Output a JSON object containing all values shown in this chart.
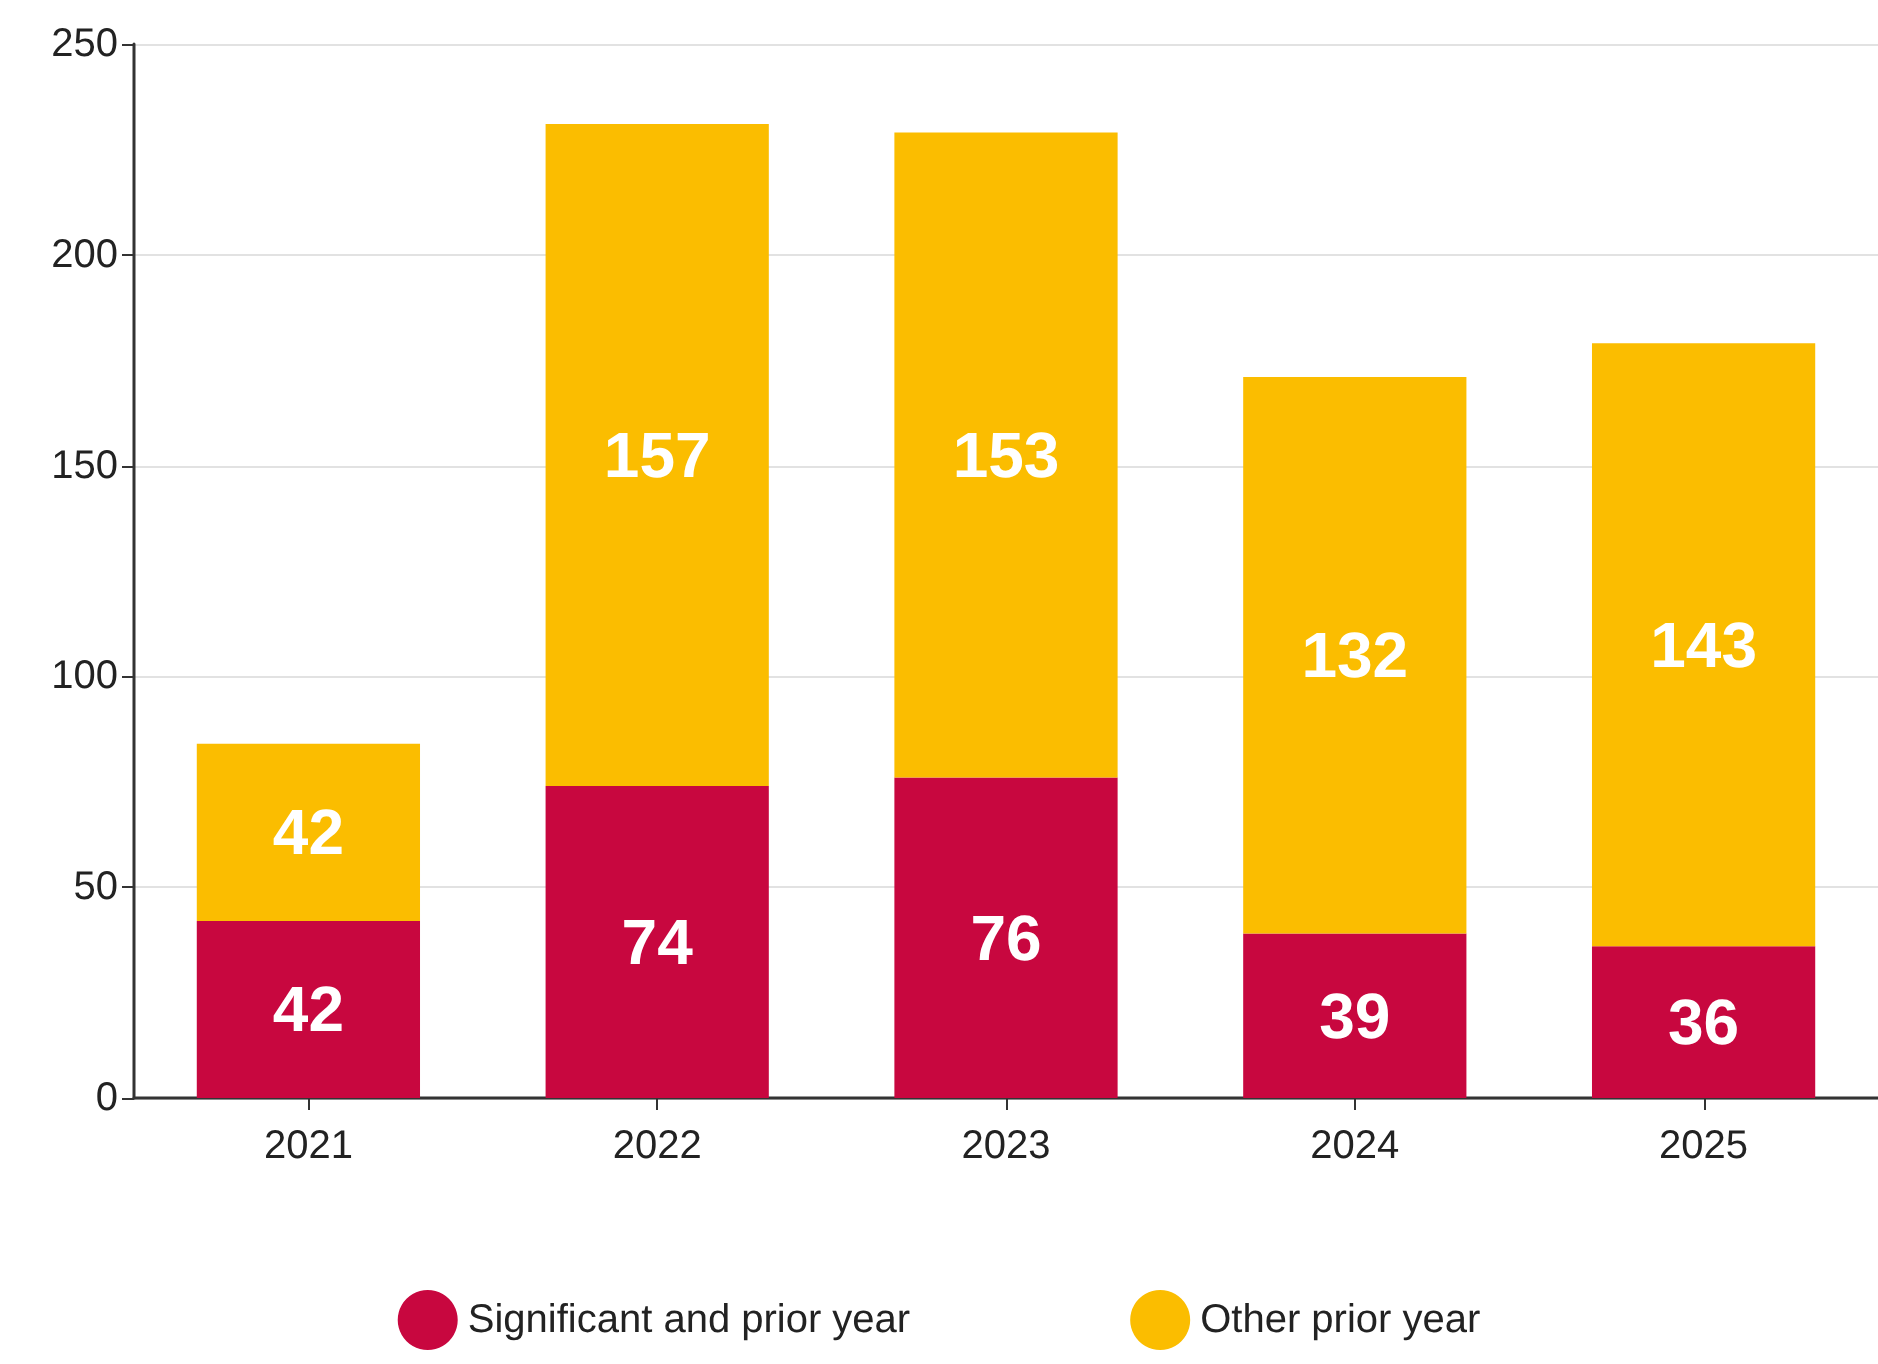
{
  "chart_data": {
    "type": "bar",
    "stacked": true,
    "categories": [
      "2021",
      "2022",
      "2023",
      "2024",
      "2025"
    ],
    "series": [
      {
        "name": "Significant and prior year",
        "color": "#c8073f",
        "values": [
          42,
          74,
          76,
          39,
          36
        ]
      },
      {
        "name": "Other prior year",
        "color": "#fbbd00",
        "values": [
          42,
          157,
          153,
          132,
          143
        ]
      }
    ],
    "ylim": [
      0,
      250
    ],
    "yticks": [
      0,
      50,
      100,
      150,
      200,
      250
    ],
    "grid": "y",
    "legend": "bottom",
    "data_labels": true
  }
}
